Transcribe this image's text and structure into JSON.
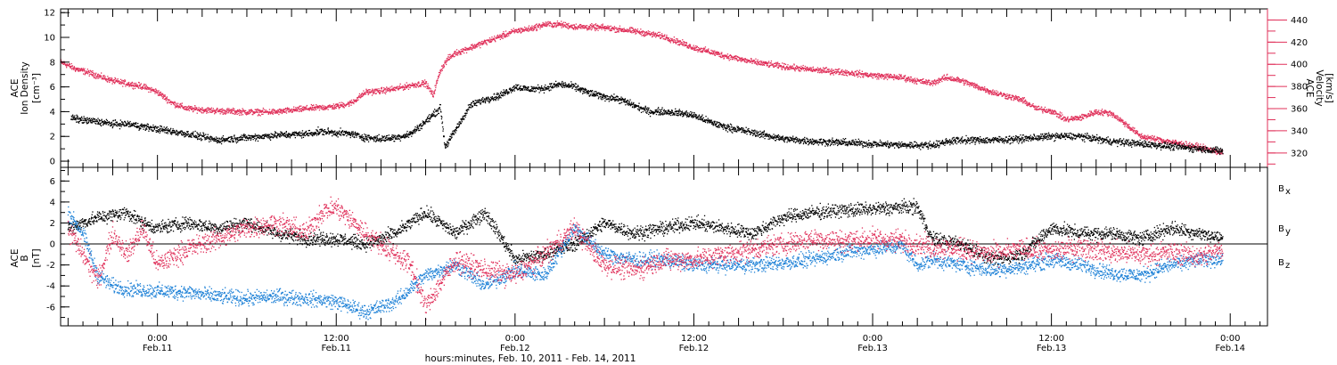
{
  "chart_data": [
    {
      "type": "scatter",
      "panel": "top",
      "ylabel_left": [
        "ACE",
        "Ion Density",
        "[cm⁻³]"
      ],
      "ylabel_right": [
        "ACE",
        "Velocity",
        "[km/s]"
      ],
      "ylim_left": [
        -0.5,
        12.3
      ],
      "ylim_right": [
        307,
        450
      ],
      "left_ticks": [
        0,
        2,
        4,
        6,
        8,
        10,
        12
      ],
      "right_ticks": [
        320,
        340,
        360,
        380,
        400,
        420,
        440
      ],
      "x_range_hours": [
        -6.5,
        74.5
      ],
      "grid": false,
      "series": [
        {
          "axis": "left",
          "color": "#000000",
          "x": [
            -5.8,
            -5,
            -4,
            -3,
            -2,
            -1,
            0,
            2,
            4,
            6,
            8,
            10,
            11,
            12,
            13,
            14,
            15,
            16,
            17,
            18,
            19,
            19.3,
            19.5,
            20,
            20.5,
            21,
            22,
            23,
            24,
            25,
            26,
            27,
            28,
            29,
            30,
            31,
            32,
            33,
            34,
            35,
            36,
            37,
            38,
            40,
            42,
            44,
            46,
            48,
            50,
            52,
            52.5,
            53,
            54,
            56,
            58,
            60,
            62,
            64,
            66,
            68,
            70,
            71.5
          ],
          "values": [
            3.5,
            3.3,
            3.2,
            3.0,
            3.0,
            2.8,
            2.6,
            2.2,
            1.7,
            1.9,
            2.1,
            2.2,
            2.4,
            2.3,
            2.2,
            1.9,
            1.8,
            1.9,
            2.2,
            3.2,
            4.3,
            1.2,
            1.5,
            2.5,
            3.5,
            4.5,
            5.0,
            5.3,
            6.0,
            5.8,
            5.9,
            6.2,
            6.0,
            5.5,
            5.2,
            5.0,
            4.5,
            4.0,
            4.0,
            3.9,
            3.7,
            3.2,
            2.8,
            2.3,
            1.8,
            1.6,
            1.5,
            1.4,
            1.3,
            1.3,
            1.4,
            1.6,
            1.7,
            1.7,
            1.8,
            2.0,
            2.0,
            1.6,
            1.4,
            1.2,
            1.0,
            0.8
          ]
        },
        {
          "axis": "right",
          "color": "#e0305a",
          "x": [
            -6.5,
            -5.5,
            -4.5,
            -3,
            -1,
            0,
            1,
            2,
            4,
            6,
            8,
            10,
            12,
            13,
            14,
            15,
            16,
            17,
            18,
            18.5,
            19,
            19.5,
            20,
            21,
            22,
            23,
            24,
            25,
            26,
            27,
            28,
            30,
            32,
            34,
            36,
            38,
            40,
            42,
            44,
            46,
            48,
            50,
            51,
            51.5,
            52,
            52.5,
            53,
            54,
            56,
            58,
            59,
            60,
            61,
            62,
            63,
            64,
            65,
            66,
            68,
            70,
            71.5
          ],
          "values": [
            402,
            396,
            392,
            385,
            380,
            375,
            365,
            360,
            358,
            357,
            357,
            360,
            362,
            365,
            375,
            376,
            378,
            381,
            383,
            372,
            395,
            405,
            410,
            415,
            420,
            425,
            430,
            432,
            436,
            436,
            434,
            433,
            430,
            425,
            415,
            408,
            402,
            398,
            395,
            393,
            390,
            388,
            385,
            384,
            383,
            386,
            388,
            385,
            375,
            368,
            360,
            358,
            350,
            352,
            357,
            356,
            346,
            335,
            330,
            325,
            320
          ]
        }
      ]
    },
    {
      "type": "scatter",
      "panel": "bottom",
      "ylabel": [
        "ACE",
        "B",
        "[nT]"
      ],
      "ylim": [
        -7.8,
        7.3
      ],
      "y_ticks": [
        -6,
        -4,
        -2,
        0,
        2,
        4,
        6
      ],
      "zero_line": true,
      "x_range_hours": [
        -6.5,
        74.5
      ],
      "legend_position": "right",
      "series": [
        {
          "legend_label": "B",
          "legend_sub": "x",
          "color": "#000000",
          "x": [
            -6,
            -4,
            -2,
            -1,
            0,
            2,
            4,
            6,
            8,
            10,
            12,
            14,
            16,
            18,
            20,
            22,
            24,
            26,
            28,
            30,
            32,
            34,
            36,
            38,
            40,
            42,
            44,
            46,
            48,
            50,
            51,
            52,
            54,
            56,
            58,
            60,
            62,
            64,
            66,
            68,
            70,
            71.5
          ],
          "values": [
            1.5,
            2.5,
            3.0,
            2.0,
            1.5,
            2.0,
            1.5,
            2.0,
            1.0,
            0.5,
            0.5,
            0.0,
            1.0,
            3.0,
            1.0,
            3.0,
            -1.5,
            -1.0,
            0.0,
            2.0,
            1.0,
            1.5,
            2.0,
            1.5,
            1.0,
            2.5,
            3.0,
            3.2,
            3.3,
            3.5,
            3.5,
            0.5,
            0.0,
            -1.5,
            -1.0,
            1.5,
            1.0,
            1.0,
            0.5,
            1.5,
            1.0,
            0.5
          ]
        },
        {
          "legend_label": "B",
          "legend_sub": "y",
          "color": "#1a7fd6",
          "x": [
            -6,
            -5,
            -4,
            -3,
            -2,
            0,
            2,
            4,
            6,
            8,
            10,
            12,
            14,
            16,
            18,
            20,
            22,
            24,
            26,
            28,
            30,
            32,
            34,
            36,
            38,
            40,
            42,
            44,
            46,
            48,
            50,
            51,
            52,
            54,
            56,
            58,
            60,
            62,
            64,
            66,
            68,
            70,
            71.5
          ],
          "values": [
            3.0,
            1.0,
            -3.0,
            -4.0,
            -4.3,
            -4.5,
            -4.6,
            -5.0,
            -5.2,
            -5.0,
            -5.2,
            -5.5,
            -6.5,
            -5.5,
            -3.0,
            -2.0,
            -4.0,
            -2.5,
            -3.0,
            1.5,
            -1.0,
            -1.5,
            -1.5,
            -2.0,
            -2.0,
            -2.0,
            -1.8,
            -1.5,
            -0.8,
            -0.5,
            -0.2,
            -2.0,
            -1.5,
            -2.0,
            -2.5,
            -2.2,
            -1.5,
            -2.0,
            -2.8,
            -3.0,
            -2.0,
            -1.5,
            -1.5
          ]
        },
        {
          "legend_label": "B",
          "legend_sub": "z",
          "color": "#e0305a",
          "x": [
            -6,
            -5,
            -4,
            -3,
            -2,
            -1,
            0,
            2,
            4,
            6,
            8,
            10,
            11,
            12,
            14,
            16,
            17,
            18,
            20,
            22,
            24,
            26,
            28,
            30,
            32,
            34,
            36,
            38,
            40,
            42,
            44,
            46,
            48,
            50,
            52,
            54,
            56,
            58,
            60,
            62,
            64,
            66,
            68,
            70,
            71.5
          ],
          "values": [
            1.5,
            -1.0,
            -3.5,
            1.0,
            -1.0,
            1.5,
            -2.0,
            -0.5,
            0.5,
            1.5,
            2.0,
            1.0,
            3.0,
            3.5,
            1.0,
            -1.0,
            -2.0,
            -6.0,
            -1.5,
            -2.5,
            -3.0,
            -1.0,
            1.5,
            -2.0,
            -2.5,
            -1.5,
            -1.5,
            -1.0,
            -0.5,
            0.0,
            0.5,
            0.3,
            0.5,
            0.3,
            -0.3,
            -0.5,
            -1.0,
            -0.5,
            -0.7,
            -0.3,
            -0.8,
            -1.0,
            -0.8,
            -1.2,
            -0.5
          ]
        }
      ]
    }
  ],
  "x_axis": {
    "major_ticks": [
      {
        "hour": 0,
        "time": "0:00",
        "date": "Feb.11"
      },
      {
        "hour": 12,
        "time": "12:00",
        "date": "Feb.11"
      },
      {
        "hour": 24,
        "time": "0:00",
        "date": "Feb.12"
      },
      {
        "hour": 36,
        "time": "12:00",
        "date": "Feb.12"
      },
      {
        "hour": 48,
        "time": "0:00",
        "date": "Feb.13"
      },
      {
        "hour": 60,
        "time": "12:00",
        "date": "Feb.13"
      },
      {
        "hour": 72,
        "time": "0:00",
        "date": "Feb.14"
      }
    ],
    "label": "hours:minutes, Feb. 10, 2011 - Feb. 14, 2011"
  }
}
